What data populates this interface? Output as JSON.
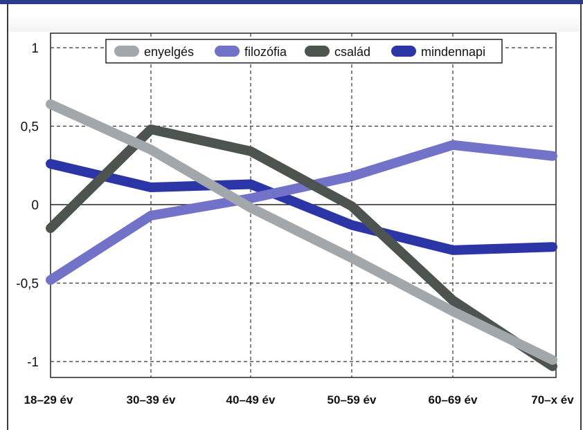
{
  "chart_data": {
    "type": "line",
    "categories": [
      "18–29 év",
      "30–39 év",
      "40–49 év",
      "50–59 év",
      "60–69 év",
      "70–x év"
    ],
    "yticks": [
      "1",
      "0,5",
      "0",
      "-0,5",
      "-1"
    ],
    "ylim": [
      -1.1,
      1.1
    ],
    "grid": true,
    "legend_position": "top",
    "series": [
      {
        "name": "enyelgés",
        "color": "#a2a7ab",
        "values": [
          0.64,
          0.35,
          -0.02,
          -0.34,
          -0.68,
          -0.99
        ]
      },
      {
        "name": "filozófia",
        "color": "#7272c8",
        "values": [
          -0.48,
          -0.07,
          0.04,
          0.18,
          0.38,
          0.31
        ]
      },
      {
        "name": "család",
        "color": "#4d5450",
        "values": [
          -0.15,
          0.48,
          0.34,
          -0.01,
          -0.61,
          -1.03
        ]
      },
      {
        "name": "mindennapi",
        "color": "#2c35a5",
        "values": [
          0.26,
          0.11,
          0.13,
          -0.13,
          -0.29,
          -0.27
        ]
      }
    ]
  }
}
